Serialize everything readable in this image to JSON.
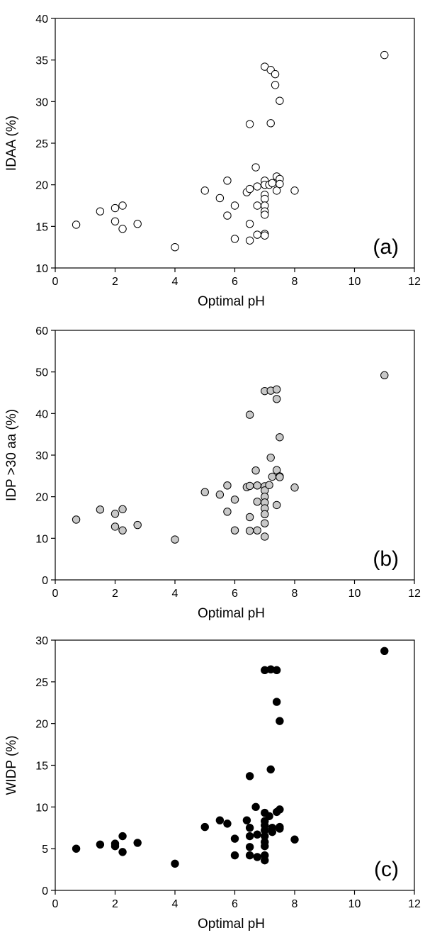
{
  "chart_data": [
    {
      "type": "scatter",
      "panel_label": "(a)",
      "xlabel": "Optimal pH",
      "ylabel": "IDAA (%)",
      "xlim": [
        0,
        12
      ],
      "ylim": [
        10,
        40
      ],
      "xticks": [
        0,
        2,
        4,
        6,
        8,
        10,
        12
      ],
      "yticks": [
        10,
        15,
        20,
        25,
        30,
        35,
        40
      ],
      "marker": "open-circle",
      "fill": "#ffffff",
      "points": [
        [
          0.7,
          15.2
        ],
        [
          1.5,
          16.8
        ],
        [
          2.0,
          17.2
        ],
        [
          2.25,
          17.5
        ],
        [
          2.0,
          15.6
        ],
        [
          2.25,
          14.7
        ],
        [
          2.75,
          15.3
        ],
        [
          4.0,
          12.5
        ],
        [
          5.0,
          19.3
        ],
        [
          5.5,
          18.4
        ],
        [
          5.75,
          20.5
        ],
        [
          5.75,
          16.3
        ],
        [
          6.0,
          17.5
        ],
        [
          6.0,
          13.5
        ],
        [
          6.4,
          19.1
        ],
        [
          6.5,
          19.5
        ],
        [
          6.5,
          27.3
        ],
        [
          6.5,
          15.3
        ],
        [
          6.5,
          13.3
        ],
        [
          6.7,
          22.1
        ],
        [
          6.75,
          19.8
        ],
        [
          6.75,
          17.5
        ],
        [
          6.75,
          14.0
        ],
        [
          7.0,
          34.2
        ],
        [
          7.0,
          20.5
        ],
        [
          7.0,
          20.0
        ],
        [
          7.0,
          18.8
        ],
        [
          7.0,
          18.3
        ],
        [
          7.0,
          17.5
        ],
        [
          7.0,
          16.8
        ],
        [
          7.0,
          16.4
        ],
        [
          7.0,
          14.1
        ],
        [
          7.0,
          13.9
        ],
        [
          7.15,
          20.0
        ],
        [
          7.2,
          33.8
        ],
        [
          7.2,
          27.4
        ],
        [
          7.25,
          20.2
        ],
        [
          7.35,
          33.3
        ],
        [
          7.35,
          32.0
        ],
        [
          7.4,
          21.0
        ],
        [
          7.4,
          19.3
        ],
        [
          7.5,
          30.1
        ],
        [
          7.5,
          20.7
        ],
        [
          7.5,
          20.1
        ],
        [
          8.0,
          19.3
        ],
        [
          11.0,
          35.6
        ]
      ]
    },
    {
      "type": "scatter",
      "panel_label": "(b)",
      "xlabel": "Optimal pH",
      "ylabel": "IDP >30 aa (%)",
      "xlim": [
        0,
        12
      ],
      "ylim": [
        0,
        60
      ],
      "xticks": [
        0,
        2,
        4,
        6,
        8,
        10,
        12
      ],
      "yticks": [
        0,
        10,
        20,
        30,
        40,
        50,
        60
      ],
      "marker": "gray-circle",
      "fill": "#c8c8c8",
      "points": [
        [
          0.7,
          14.5
        ],
        [
          1.5,
          16.9
        ],
        [
          2.0,
          15.9
        ],
        [
          2.25,
          17.0
        ],
        [
          2.0,
          12.8
        ],
        [
          2.25,
          11.9
        ],
        [
          2.75,
          13.2
        ],
        [
          4.0,
          9.7
        ],
        [
          5.0,
          21.1
        ],
        [
          5.5,
          20.5
        ],
        [
          5.75,
          22.7
        ],
        [
          5.75,
          16.4
        ],
        [
          6.0,
          19.3
        ],
        [
          6.0,
          11.9
        ],
        [
          6.4,
          22.3
        ],
        [
          6.5,
          22.6
        ],
        [
          6.5,
          39.7
        ],
        [
          6.5,
          15.1
        ],
        [
          6.5,
          11.8
        ],
        [
          6.7,
          26.3
        ],
        [
          6.75,
          22.7
        ],
        [
          6.75,
          18.8
        ],
        [
          6.75,
          11.9
        ],
        [
          7.0,
          45.4
        ],
        [
          7.0,
          22.5
        ],
        [
          7.0,
          21.5
        ],
        [
          7.0,
          20.0
        ],
        [
          7.0,
          18.6
        ],
        [
          7.0,
          17.2
        ],
        [
          7.0,
          15.8
        ],
        [
          7.0,
          13.6
        ],
        [
          7.0,
          10.4
        ],
        [
          7.15,
          22.8
        ],
        [
          7.2,
          45.5
        ],
        [
          7.2,
          29.4
        ],
        [
          7.25,
          24.8
        ],
        [
          7.4,
          45.8
        ],
        [
          7.4,
          43.5
        ],
        [
          7.4,
          26.4
        ],
        [
          7.4,
          18.0
        ],
        [
          7.5,
          34.3
        ],
        [
          7.5,
          24.9
        ],
        [
          7.5,
          24.7
        ],
        [
          8.0,
          22.2
        ],
        [
          11.0,
          49.2
        ]
      ]
    },
    {
      "type": "scatter",
      "panel_label": "(c)",
      "xlabel": "Optimal pH",
      "ylabel": "WIDP (%)",
      "xlim": [
        0,
        12
      ],
      "ylim": [
        0,
        30
      ],
      "xticks": [
        0,
        2,
        4,
        6,
        8,
        10,
        12
      ],
      "yticks": [
        0,
        5,
        10,
        15,
        20,
        25,
        30
      ],
      "marker": "filled-circle",
      "fill": "#000000",
      "points": [
        [
          0.7,
          5.0
        ],
        [
          1.5,
          5.5
        ],
        [
          2.0,
          5.6
        ],
        [
          2.0,
          5.3
        ],
        [
          2.25,
          6.5
        ],
        [
          2.25,
          4.6
        ],
        [
          2.75,
          5.7
        ],
        [
          4.0,
          3.2
        ],
        [
          5.0,
          7.6
        ],
        [
          5.5,
          8.4
        ],
        [
          5.75,
          8.0
        ],
        [
          6.0,
          6.2
        ],
        [
          6.0,
          4.2
        ],
        [
          6.4,
          8.4
        ],
        [
          6.5,
          7.5
        ],
        [
          6.5,
          13.7
        ],
        [
          6.5,
          6.5
        ],
        [
          6.5,
          5.2
        ],
        [
          6.5,
          4.2
        ],
        [
          6.7,
          10.0
        ],
        [
          6.75,
          6.7
        ],
        [
          6.75,
          4.0
        ],
        [
          7.0,
          26.4
        ],
        [
          7.0,
          9.3
        ],
        [
          7.0,
          8.3
        ],
        [
          7.0,
          7.8
        ],
        [
          7.0,
          7.2
        ],
        [
          7.0,
          6.5
        ],
        [
          7.0,
          5.8
        ],
        [
          7.0,
          5.3
        ],
        [
          7.0,
          4.2
        ],
        [
          7.0,
          3.6
        ],
        [
          7.15,
          8.9
        ],
        [
          7.2,
          26.5
        ],
        [
          7.2,
          14.5
        ],
        [
          7.25,
          7.5
        ],
        [
          7.25,
          7.0
        ],
        [
          7.4,
          26.4
        ],
        [
          7.4,
          22.6
        ],
        [
          7.4,
          9.4
        ],
        [
          7.5,
          20.3
        ],
        [
          7.5,
          9.7
        ],
        [
          7.5,
          7.6
        ],
        [
          7.5,
          7.4
        ],
        [
          8.0,
          6.1
        ],
        [
          11.0,
          28.7
        ]
      ]
    }
  ]
}
